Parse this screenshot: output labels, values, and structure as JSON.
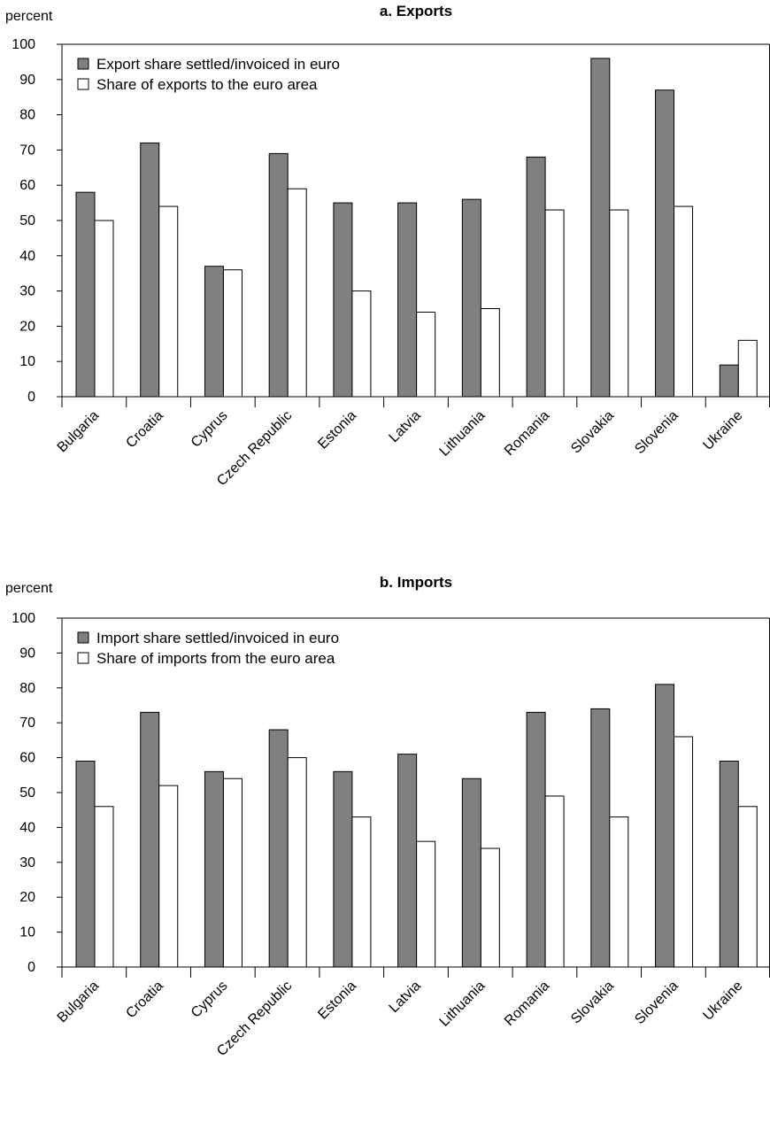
{
  "chart_data": [
    {
      "type": "bar",
      "title": "a. Exports",
      "ylabel": "percent",
      "xlabel": "",
      "ylim": [
        0,
        100
      ],
      "yticks": [
        0,
        10,
        20,
        30,
        40,
        50,
        60,
        70,
        80,
        90,
        100
      ],
      "categories": [
        "Bulgaria",
        "Croatia",
        "Cyprus",
        "Czech Republic",
        "Estonia",
        "Latvia",
        "Lithuania",
        "Romania",
        "Slovakia",
        "Slovenia",
        "Ukraine"
      ],
      "series": [
        {
          "name": "Export share settled/invoiced in euro",
          "color": "#808080",
          "values": [
            58,
            72,
            37,
            69,
            55,
            55,
            56,
            68,
            96,
            87,
            9
          ]
        },
        {
          "name": "Share of exports to the euro area",
          "color": "#ffffff",
          "values": [
            50,
            54,
            36,
            59,
            30,
            24,
            25,
            53,
            53,
            54,
            16
          ]
        }
      ],
      "legend": "top-left",
      "grid": false
    },
    {
      "type": "bar",
      "title": "b. Imports",
      "ylabel": "percent",
      "xlabel": "",
      "ylim": [
        0,
        100
      ],
      "yticks": [
        0,
        10,
        20,
        30,
        40,
        50,
        60,
        70,
        80,
        90,
        100
      ],
      "categories": [
        "Bulgaria",
        "Croatia",
        "Cyprus",
        "Czech Republic",
        "Estonia",
        "Latvia",
        "Lithuania",
        "Romania",
        "Slovakia",
        "Slovenia",
        "Ukraine"
      ],
      "series": [
        {
          "name": "Import share settled/invoiced in euro",
          "color": "#808080",
          "values": [
            59,
            73,
            56,
            68,
            56,
            61,
            54,
            73,
            74,
            81,
            59
          ]
        },
        {
          "name": "Share of imports from the euro area",
          "color": "#ffffff",
          "values": [
            46,
            52,
            54,
            60,
            43,
            36,
            34,
            49,
            43,
            66,
            46
          ]
        }
      ],
      "legend": "top-left",
      "grid": false
    }
  ]
}
